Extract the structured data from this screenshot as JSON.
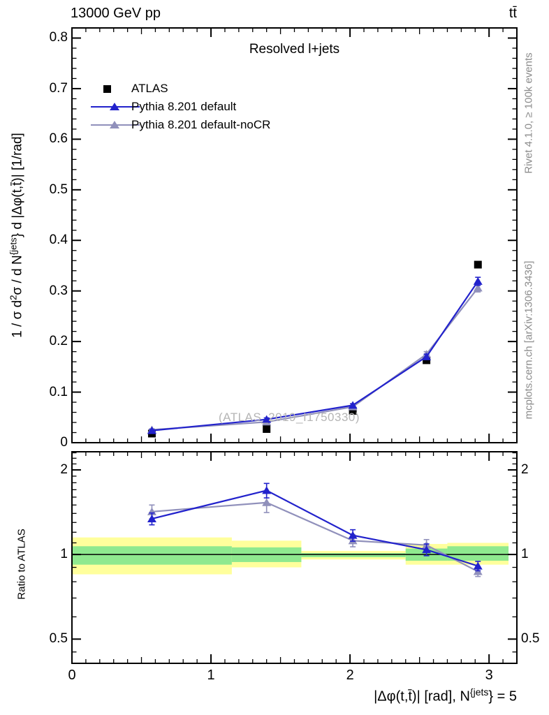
{
  "header": {
    "title_left": "13000 GeV pp",
    "title_right": "tt̄"
  },
  "plot": {
    "subtitle": "Resolved l+jets",
    "watermark": "(ATLAS_2019_I1750330)",
    "right_label_top": "Rivet 4.1.0, ≥ 100k events",
    "right_label_bottom": "mcplots.cern.ch [arXiv:1306.3436]",
    "ylabel_parts": [
      "1 / σ d",
      "2",
      "σ /  d N",
      "{jets",
      "} d |Δφ(t,t̄)| [1/rad]"
    ],
    "xlabel_parts": [
      "|Δφ(t,t̄)| [rad], N",
      "{jets",
      "} = 5"
    ],
    "ratio_ylabel": "Ratio to ATLAS"
  },
  "legend": [
    {
      "label": "ATLAS",
      "marker": "square",
      "color": "#000000"
    },
    {
      "label": "Pythia 8.201 default",
      "marker": "triangle",
      "color": "#2222cc"
    },
    {
      "label": "Pythia 8.201 default-noCR",
      "marker": "triangle",
      "color": "#9090bb"
    }
  ],
  "colors": {
    "atlas": "#000000",
    "pythia_default": "#2222cc",
    "pythia_nocr": "#9090bb",
    "band_yellow": "#ffff9c",
    "band_green": "#8fe98f",
    "frame": "#000000"
  },
  "chart_data": {
    "type": "line",
    "title": "13000 GeV pp / tt̄, Resolved l+jets",
    "xlabel": "|Δφ(t,t̄)| [rad], N^{jets} = 5",
    "ylabel": "1/σ d²σ / dN^{jets} d|Δφ(t,t̄)| [1/rad]",
    "xlim": [
      0,
      3.2
    ],
    "x_centers": [
      0.575,
      1.4,
      2.02,
      2.55,
      2.92
    ],
    "bin_edges": [
      0,
      1.15,
      1.65,
      2.4,
      2.7,
      3.14
    ],
    "xticks": [
      {
        "v": 0,
        "t": "0"
      },
      {
        "v": 1,
        "t": "1"
      },
      {
        "v": 2,
        "t": "2"
      },
      {
        "v": 3,
        "t": "3"
      }
    ],
    "main_panel": {
      "ylim": [
        0,
        0.82
      ],
      "yticks": [
        {
          "v": 0,
          "t": "0"
        },
        {
          "v": 0.1,
          "t": "0.1"
        },
        {
          "v": 0.2,
          "t": "0.2"
        },
        {
          "v": 0.3,
          "t": "0.3"
        },
        {
          "v": 0.4,
          "t": "0.4"
        },
        {
          "v": 0.5,
          "t": "0.5"
        },
        {
          "v": 0.6,
          "t": "0.6"
        },
        {
          "v": 0.7,
          "t": "0.7"
        },
        {
          "v": 0.8,
          "t": "0.8"
        }
      ],
      "series": [
        {
          "name": "ATLAS",
          "marker": "square",
          "line": false,
          "color": "#000000",
          "values": [
            0.018,
            0.027,
            0.063,
            0.163,
            0.352
          ],
          "errors": [
            0.001,
            0.001,
            0.002,
            0.003,
            0.004
          ]
        },
        {
          "name": "Pythia 8.201 default-noCR",
          "marker": "triangle",
          "line": true,
          "color": "#9090bb",
          "values": [
            0.0255,
            0.041,
            0.071,
            0.175,
            0.306
          ],
          "errors": [
            0.002,
            0.003,
            0.003,
            0.005,
            0.008
          ]
        },
        {
          "name": "Pythia 8.201 default",
          "marker": "triangle",
          "line": true,
          "color": "#2222cc",
          "values": [
            0.024,
            0.046,
            0.074,
            0.17,
            0.319
          ],
          "errors": [
            0.002,
            0.003,
            0.003,
            0.005,
            0.008
          ]
        }
      ]
    },
    "ratio_panel": {
      "scale": "log",
      "ylim": [
        0.41,
        2.32
      ],
      "yticks": [
        {
          "v": 0.5,
          "t": "0.5"
        },
        {
          "v": 1,
          "t": "1"
        },
        {
          "v": 2,
          "t": "2"
        }
      ],
      "minor_ticks": [
        0.45,
        0.6,
        0.7,
        0.8,
        0.9,
        1.1,
        1.2,
        1.3,
        1.4,
        1.5,
        1.6,
        1.7,
        1.8,
        1.9,
        2.1,
        2.2,
        2.3
      ],
      "unity_line": 1,
      "series": [
        {
          "name": "Pythia 8.201 default-noCR",
          "marker": "triangle",
          "line": true,
          "color": "#9090bb",
          "values": [
            1.42,
            1.53,
            1.12,
            1.08,
            0.87
          ],
          "errors": [
            0.08,
            0.12,
            0.055,
            0.05,
            0.035
          ]
        },
        {
          "name": "Pythia 8.201 default",
          "marker": "triangle",
          "line": true,
          "color": "#2222cc",
          "values": [
            1.34,
            1.69,
            1.17,
            1.04,
            0.91
          ],
          "errors": [
            0.065,
            0.1,
            0.055,
            0.05,
            0.035
          ]
        }
      ],
      "bands": [
        {
          "x0": 0,
          "x1": 1.15,
          "yellow": [
            0.85,
            1.15
          ],
          "green": [
            0.92,
            1.07
          ]
        },
        {
          "x0": 1.15,
          "x1": 1.65,
          "yellow": [
            0.9,
            1.12
          ],
          "green": [
            0.94,
            1.06
          ]
        },
        {
          "x0": 1.65,
          "x1": 2.4,
          "yellow": [
            0.96,
            1.03
          ],
          "green": [
            0.978,
            1.012
          ]
        },
        {
          "x0": 2.4,
          "x1": 2.7,
          "yellow": [
            0.92,
            1.09
          ],
          "green": [
            0.95,
            1.05
          ]
        },
        {
          "x0": 2.7,
          "x1": 3.14,
          "yellow": [
            0.92,
            1.1
          ],
          "green": [
            0.95,
            1.07
          ]
        }
      ]
    }
  }
}
